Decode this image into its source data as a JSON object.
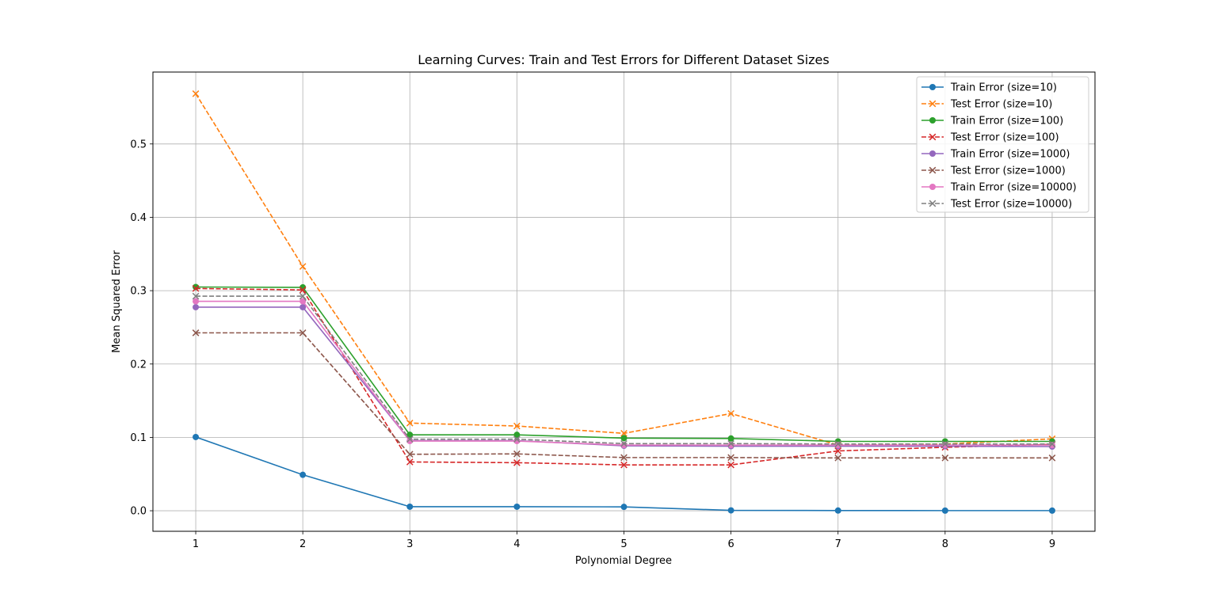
{
  "chart_data": {
    "type": "line",
    "title": "Learning Curves: Train and Test Errors for Different Dataset Sizes",
    "xlabel": "Polynomial Degree",
    "ylabel": "Mean Squared Error",
    "x": [
      1,
      2,
      3,
      4,
      5,
      6,
      7,
      8,
      9
    ],
    "xlim": [
      0.6,
      9.4
    ],
    "ylim": [
      -0.028,
      0.598
    ],
    "xticks": [
      1,
      2,
      3,
      4,
      5,
      6,
      7,
      8,
      9
    ],
    "yticks": [
      "0.0",
      "0.1",
      "0.2",
      "0.3",
      "0.4",
      "0.5"
    ],
    "grid": true,
    "legend_position": "top-right",
    "series": [
      {
        "name": "Train Error (size=10)",
        "color": "#1f77b4",
        "dash": false,
        "marker": "o",
        "values": [
          0.1005,
          0.049,
          0.0055,
          0.0055,
          0.0053,
          0.0005,
          0.0003,
          0.0002,
          0.0002
        ]
      },
      {
        "name": "Test Error (size=10)",
        "color": "#ff7f0e",
        "dash": true,
        "marker": "x",
        "values": [
          0.5685,
          0.333,
          0.1195,
          0.1155,
          0.1055,
          0.1325,
          0.0895,
          0.091,
          0.098
        ]
      },
      {
        "name": "Train Error (size=100)",
        "color": "#2ca02c",
        "dash": false,
        "marker": "o",
        "values": [
          0.305,
          0.3045,
          0.1035,
          0.1035,
          0.099,
          0.0985,
          0.0945,
          0.0945,
          0.0945
        ]
      },
      {
        "name": "Test Error (size=100)",
        "color": "#d62728",
        "dash": true,
        "marker": "x",
        "values": [
          0.303,
          0.301,
          0.0665,
          0.0655,
          0.0625,
          0.0625,
          0.0815,
          0.0865,
          0.0905
        ]
      },
      {
        "name": "Train Error (size=1000)",
        "color": "#9467bd",
        "dash": false,
        "marker": "o",
        "values": [
          0.2775,
          0.2775,
          0.0955,
          0.0955,
          0.0885,
          0.088,
          0.088,
          0.088,
          0.0875
        ]
      },
      {
        "name": "Test Error (size=1000)",
        "color": "#8c564b",
        "dash": true,
        "marker": "x",
        "values": [
          0.2425,
          0.2425,
          0.077,
          0.0775,
          0.0725,
          0.0725,
          0.072,
          0.072,
          0.072
        ]
      },
      {
        "name": "Train Error (size=10000)",
        "color": "#e377c2",
        "dash": false,
        "marker": "o",
        "values": [
          0.2855,
          0.2855,
          0.095,
          0.095,
          0.0895,
          0.0895,
          0.0895,
          0.0895,
          0.0895
        ]
      },
      {
        "name": "Test Error (size=10000)",
        "color": "#7f7f7f",
        "dash": true,
        "marker": "x",
        "values": [
          0.2925,
          0.2925,
          0.0975,
          0.0975,
          0.0915,
          0.0915,
          0.091,
          0.091,
          0.091
        ]
      }
    ]
  }
}
